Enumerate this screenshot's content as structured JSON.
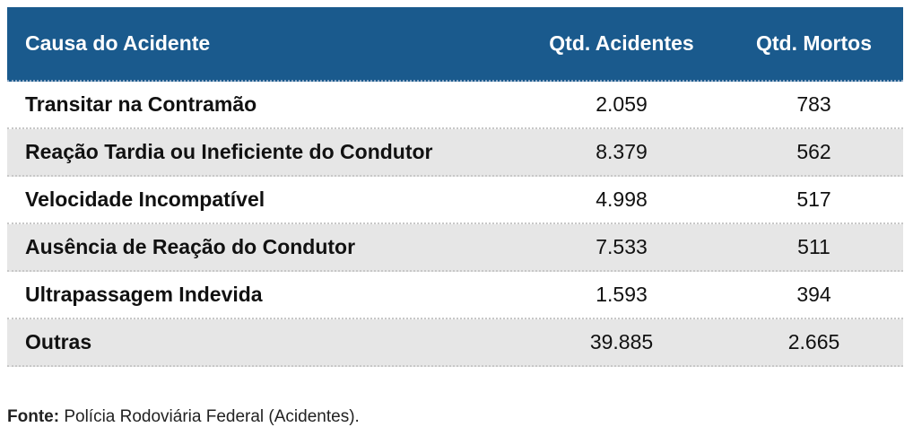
{
  "table": {
    "headers": [
      "Causa do Acidente",
      "Qtd. Acidentes",
      "Qtd. Mortos"
    ],
    "rows": [
      [
        "Transitar na Contramão",
        "2.059",
        "783"
      ],
      [
        "Reação Tardia ou Ineficiente do Condutor",
        "8.379",
        "562"
      ],
      [
        "Velocidade Incompatível",
        "4.998",
        "517"
      ],
      [
        "Ausência de Reação do Condutor",
        "7.533",
        "511"
      ],
      [
        "Ultrapassagem Indevida",
        "1.593",
        "394"
      ],
      [
        "Outras",
        "39.885",
        "2.665"
      ]
    ]
  },
  "source": {
    "label": "Fonte:",
    "text": " Polícia Rodoviária Federal (Acidentes)."
  },
  "colors": {
    "header_bg": "#1a5a8d",
    "header_text": "#ffffff",
    "alt_row_bg": "#e6e6e6"
  }
}
